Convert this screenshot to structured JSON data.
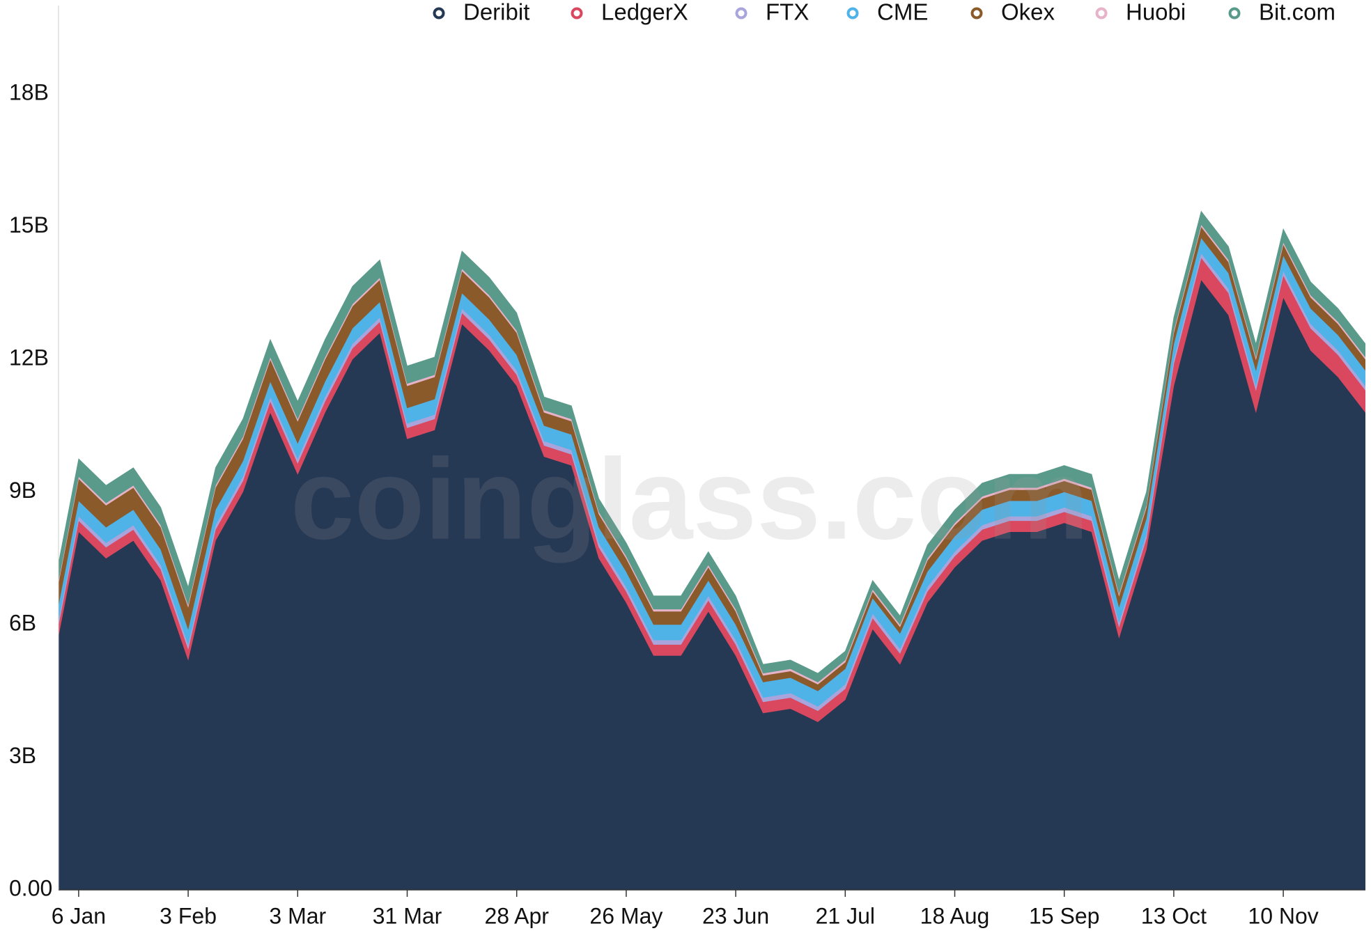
{
  "chart_data": {
    "type": "stacked_area",
    "watermark": "coinglass.com",
    "categories": [
      null,
      "6 Jan",
      null,
      null,
      null,
      "3 Feb",
      null,
      null,
      null,
      "3 Mar",
      null,
      null,
      null,
      "31 Mar",
      null,
      null,
      null,
      "28 Apr",
      null,
      null,
      null,
      "26 May",
      null,
      null,
      null,
      "23 Jun",
      null,
      null,
      null,
      "21 Jul",
      null,
      null,
      null,
      "18 Aug",
      null,
      null,
      null,
      "15 Sep",
      null,
      null,
      null,
      "13 Oct",
      null,
      null,
      null,
      "10 Nov",
      null,
      null,
      null
    ],
    "series": [
      {
        "name": "Deribit",
        "color": "#253854",
        "values": [
          4.9,
          8.1,
          7.5,
          7.9,
          7.0,
          5.2,
          7.9,
          9.0,
          10.8,
          9.4,
          10.8,
          12.0,
          12.6,
          10.2,
          10.4,
          12.8,
          12.2,
          11.4,
          9.8,
          9.6,
          7.5,
          6.5,
          5.3,
          5.3,
          6.3,
          5.3,
          4.0,
          4.1,
          3.8,
          4.3,
          5.9,
          5.1,
          6.5,
          7.3,
          7.9,
          8.1,
          8.1,
          8.3,
          8.1,
          5.7,
          7.7,
          11.4,
          13.8,
          13.0,
          10.8,
          13.4,
          12.2,
          11.6,
          10.8
        ]
      },
      {
        "name": "LedgerX",
        "color": "#d9485f",
        "values": [
          0.25,
          0.25,
          0.25,
          0.25,
          0.25,
          0.25,
          0.25,
          0.25,
          0.25,
          0.25,
          0.25,
          0.25,
          0.25,
          0.25,
          0.25,
          0.25,
          0.25,
          0.25,
          0.25,
          0.25,
          0.25,
          0.25,
          0.25,
          0.25,
          0.25,
          0.25,
          0.25,
          0.25,
          0.25,
          0.25,
          0.25,
          0.25,
          0.25,
          0.25,
          0.25,
          0.25,
          0.25,
          0.25,
          0.25,
          0.25,
          0.25,
          0.5,
          0.5,
          0.5,
          0.5,
          0.5,
          0.5,
          0.5,
          0.5
        ]
      },
      {
        "name": "FTX",
        "color": "#a9a5dc",
        "values": [
          0.1,
          0.1,
          0.1,
          0.1,
          0.1,
          0.1,
          0.1,
          0.1,
          0.1,
          0.1,
          0.1,
          0.1,
          0.1,
          0.1,
          0.1,
          0.1,
          0.1,
          0.1,
          0.1,
          0.1,
          0.1,
          0.1,
          0.1,
          0.1,
          0.1,
          0.1,
          0.1,
          0.1,
          0.1,
          0.1,
          0.1,
          0.1,
          0.1,
          0.1,
          0.1,
          0.1,
          0.1,
          0.1,
          0.1,
          0.1,
          0.1,
          0.1,
          0.1,
          0.1,
          0.1,
          0.1,
          0.1,
          0.1,
          0.1
        ]
      },
      {
        "name": "CME",
        "color": "#4fb3e8",
        "values": [
          0.35,
          0.35,
          0.35,
          0.35,
          0.35,
          0.35,
          0.35,
          0.35,
          0.35,
          0.35,
          0.35,
          0.35,
          0.35,
          0.35,
          0.35,
          0.35,
          0.35,
          0.35,
          0.35,
          0.35,
          0.35,
          0.35,
          0.35,
          0.35,
          0.35,
          0.35,
          0.35,
          0.35,
          0.35,
          0.35,
          0.35,
          0.35,
          0.35,
          0.35,
          0.35,
          0.35,
          0.35,
          0.35,
          0.35,
          0.35,
          0.35,
          0.35,
          0.35,
          0.35,
          0.35,
          0.35,
          0.35,
          0.35,
          0.35
        ]
      },
      {
        "name": "Okex",
        "color": "#8b5a2b",
        "values": [
          0.5,
          0.5,
          0.5,
          0.5,
          0.5,
          0.5,
          0.5,
          0.5,
          0.5,
          0.5,
          0.5,
          0.5,
          0.5,
          0.5,
          0.5,
          0.5,
          0.5,
          0.5,
          0.3,
          0.3,
          0.3,
          0.3,
          0.3,
          0.3,
          0.3,
          0.3,
          0.15,
          0.15,
          0.15,
          0.15,
          0.15,
          0.15,
          0.25,
          0.25,
          0.25,
          0.25,
          0.25,
          0.25,
          0.25,
          0.25,
          0.25,
          0.25,
          0.25,
          0.25,
          0.25,
          0.25,
          0.25,
          0.25,
          0.25
        ]
      },
      {
        "name": "Huobi",
        "color": "#e6b3c8",
        "values": [
          0.05,
          0.05,
          0.05,
          0.05,
          0.05,
          0.05,
          0.05,
          0.05,
          0.05,
          0.05,
          0.05,
          0.05,
          0.05,
          0.05,
          0.05,
          0.05,
          0.05,
          0.05,
          0.05,
          0.05,
          0.05,
          0.05,
          0.05,
          0.05,
          0.05,
          0.05,
          0.05,
          0.05,
          0.05,
          0.05,
          0.05,
          0.05,
          0.05,
          0.05,
          0.05,
          0.05,
          0.05,
          0.05,
          0.05,
          0.05,
          0.05,
          0.05,
          0.05,
          0.05,
          0.05,
          0.05,
          0.05,
          0.05,
          0.05
        ]
      },
      {
        "name": "Bit.com",
        "color": "#5a9a8a",
        "values": [
          0.4,
          0.4,
          0.4,
          0.4,
          0.4,
          0.4,
          0.4,
          0.4,
          0.4,
          0.4,
          0.4,
          0.4,
          0.4,
          0.4,
          0.4,
          0.4,
          0.4,
          0.4,
          0.3,
          0.3,
          0.3,
          0.3,
          0.3,
          0.3,
          0.3,
          0.3,
          0.2,
          0.2,
          0.2,
          0.2,
          0.2,
          0.2,
          0.3,
          0.3,
          0.3,
          0.3,
          0.3,
          0.3,
          0.3,
          0.3,
          0.3,
          0.3,
          0.3,
          0.3,
          0.3,
          0.3,
          0.3,
          0.3,
          0.3
        ]
      }
    ],
    "ylim": [
      0,
      20
    ],
    "yticks": [
      {
        "value": 0,
        "label": "0.00"
      },
      {
        "value": 3,
        "label": "3B"
      },
      {
        "value": 6,
        "label": "6B"
      },
      {
        "value": 9,
        "label": "9B"
      },
      {
        "value": 12,
        "label": "12B"
      },
      {
        "value": 15,
        "label": "15B"
      },
      {
        "value": 18,
        "label": "18B"
      }
    ],
    "grid": false,
    "legend": "top"
  }
}
